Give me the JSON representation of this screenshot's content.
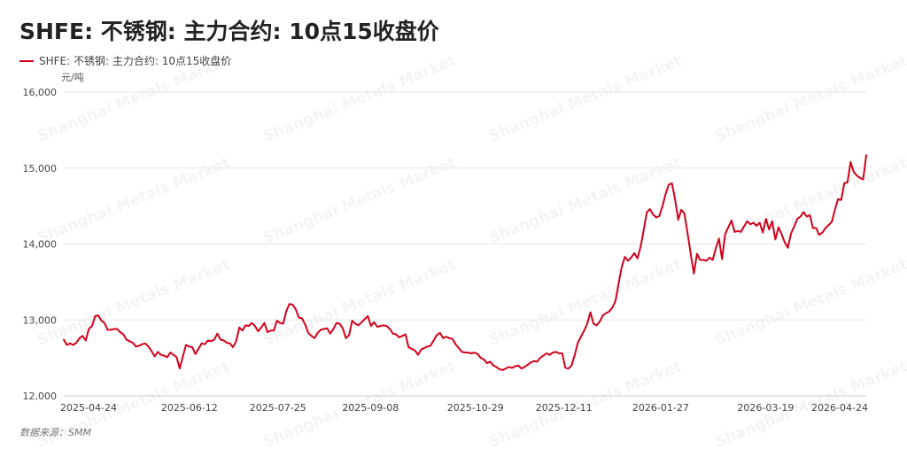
{
  "title": "SHFE: 不锈钢: 主力合约: 10点15收盘价",
  "legend_label": "SHFE: 不锈钢: 主力合约: 10点15收盘价",
  "unit": "元/吨",
  "source": "数据来源：SMM",
  "watermark": "Shanghai Metals Market",
  "colors": {
    "series": "#d0021b",
    "grid": "#e6e6e6",
    "axis": "#cccccc"
  },
  "chart_data": {
    "type": "line",
    "title": "SHFE: 不锈钢: 主力合约: 10点15收盘价",
    "ylabel": "元/吨",
    "ylim": [
      12000,
      16000
    ],
    "grid": true,
    "legend_position": "top-left",
    "y_ticks": [
      "12,000",
      "13,000",
      "14,000",
      "15,000",
      "16,000"
    ],
    "x_ticks": [
      "2025-04-24",
      "2025-06-12",
      "2025-07-25",
      "2025-09-08",
      "2025-10-29",
      "2025-12-11",
      "2026-01-27",
      "2026-03-19",
      "2026-04-24"
    ],
    "series": [
      {
        "name": "SHFE: 不锈钢: 主力合约: 10点15收盘价",
        "values": [
          12740,
          12670,
          12690,
          12670,
          12700,
          12760,
          12790,
          12730,
          12880,
          12920,
          13050,
          13060,
          12990,
          12960,
          12870,
          12870,
          12880,
          12880,
          12840,
          12810,
          12740,
          12720,
          12700,
          12650,
          12660,
          12680,
          12690,
          12650,
          12590,
          12520,
          12580,
          12540,
          12530,
          12510,
          12570,
          12540,
          12510,
          12360,
          12520,
          12670,
          12650,
          12640,
          12550,
          12620,
          12690,
          12680,
          12730,
          12720,
          12740,
          12820,
          12740,
          12730,
          12700,
          12690,
          12640,
          12720,
          12900,
          12860,
          12930,
          12920,
          12960,
          12920,
          12850,
          12900,
          12960,
          12840,
          12860,
          12860,
          12990,
          12960,
          12950,
          13120,
          13210,
          13200,
          13140,
          13030,
          13020,
          12940,
          12830,
          12790,
          12760,
          12830,
          12870,
          12880,
          12890,
          12820,
          12880,
          12960,
          12950,
          12890,
          12760,
          12800,
          12990,
          12950,
          12930,
          12970,
          13010,
          13050,
          12920,
          12970,
          12910,
          12920,
          12930,
          12920,
          12880,
          12820,
          12810,
          12770,
          12790,
          12810,
          12640,
          12620,
          12600,
          12540,
          12610,
          12630,
          12650,
          12660,
          12730,
          12800,
          12830,
          12760,
          12780,
          12760,
          12750,
          12680,
          12630,
          12580,
          12570,
          12570,
          12560,
          12570,
          12550,
          12500,
          12480,
          12430,
          12450,
          12400,
          12380,
          12350,
          12340,
          12360,
          12380,
          12370,
          12390,
          12400,
          12360,
          12380,
          12410,
          12440,
          12460,
          12450,
          12500,
          12530,
          12560,
          12540,
          12570,
          12580,
          12560,
          12560,
          12370,
          12360,
          12400,
          12540,
          12700,
          12780,
          12860,
          12950,
          13100,
          12950,
          12930,
          12980,
          13060,
          13090,
          13110,
          13160,
          13250,
          13480,
          13700,
          13830,
          13780,
          13820,
          13880,
          13810,
          13960,
          14180,
          14420,
          14460,
          14390,
          14350,
          14370,
          14500,
          14660,
          14780,
          14800,
          14590,
          14320,
          14450,
          14400,
          14140,
          13870,
          13610,
          13870,
          13790,
          13790,
          13780,
          13820,
          13790,
          13940,
          14070,
          13800,
          14130,
          14220,
          14310,
          14160,
          14170,
          14160,
          14230,
          14300,
          14260,
          14280,
          14240,
          14280,
          14150,
          14330,
          14190,
          14300,
          14060,
          14220,
          14130,
          14020,
          13950,
          14140,
          14230,
          14330,
          14360,
          14420,
          14360,
          14380,
          14210,
          14210,
          14120,
          14150,
          14210,
          14250,
          14290,
          14450,
          14590,
          14580,
          14800,
          14810,
          15080,
          14950,
          14900,
          14870,
          14850,
          15170
        ]
      }
    ]
  }
}
